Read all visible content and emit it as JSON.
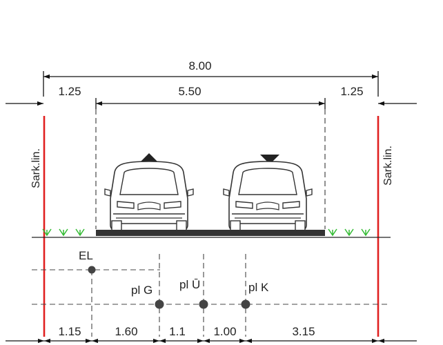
{
  "dimensions": {
    "total": "8.00",
    "left_shoulder": "1.25",
    "carriageway": "5.50",
    "right_shoulder": "1.25"
  },
  "boundary_label": "Sark.lin.",
  "utilities": {
    "el": "EL",
    "g": "pl G",
    "u": "pl Ū",
    "k": "pl K"
  },
  "utility_offsets": [
    "1.15",
    "1.60",
    "1.1",
    "1.00",
    "3.15"
  ],
  "colors": {
    "boundary_line": "#e02020",
    "road_surface": "#333333",
    "grass": "#33bb33"
  },
  "icons": {
    "up_direction": "triangle-up-icon",
    "down_direction": "triangle-down-icon",
    "car": "car-front-icon"
  }
}
